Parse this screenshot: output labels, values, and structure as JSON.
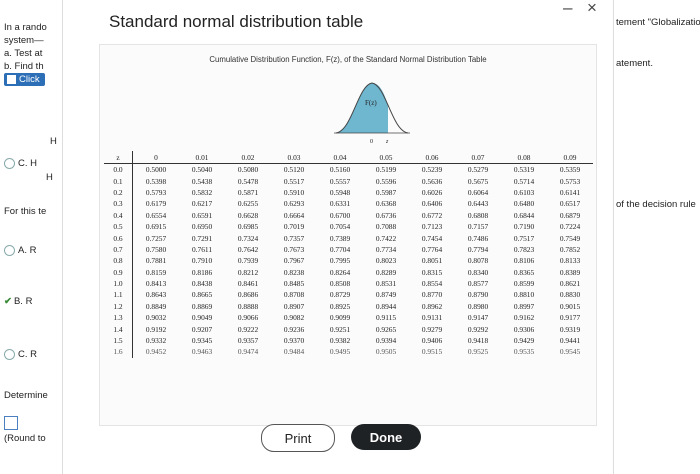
{
  "background": {
    "left": [
      "In a rando",
      "system—",
      "a. Test at",
      "b. Find th",
      "Click",
      "H",
      "H",
      "C. H",
      "H",
      "For this te",
      "A. R",
      "B. R",
      "C. R",
      "Determine",
      "(Round to"
    ],
    "right": [
      "tement \"Globalizatio",
      "atement.",
      "of the decision rule"
    ]
  },
  "dialog": {
    "title": "Standard normal distribution table",
    "minimize": "–",
    "close": "×",
    "caption": "Cumulative Distribution Function, F(z), of the Standard Normal Distribution Table",
    "curve": {
      "area_label": "F(z)",
      "zero_label": "0",
      "z_label": "z"
    },
    "buttons": {
      "print": "Print",
      "done": "Done"
    }
  },
  "table": {
    "headers": [
      "z",
      "0",
      "0.01",
      "0.02",
      "0.03",
      "0.04",
      "0.05",
      "0.06",
      "0.07",
      "0.08",
      "0.09"
    ],
    "rows": [
      [
        "0.0",
        "0.5000",
        "0.5040",
        "0.5080",
        "0.5120",
        "0.5160",
        "0.5199",
        "0.5239",
        "0.5279",
        "0.5319",
        "0.5359"
      ],
      [
        "0.1",
        "0.5398",
        "0.5438",
        "0.5478",
        "0.5517",
        "0.5557",
        "0.5596",
        "0.5636",
        "0.5675",
        "0.5714",
        "0.5753"
      ],
      [
        "0.2",
        "0.5793",
        "0.5832",
        "0.5871",
        "0.5910",
        "0.5948",
        "0.5987",
        "0.6026",
        "0.6064",
        "0.6103",
        "0.6141"
      ],
      [
        "0.3",
        "0.6179",
        "0.6217",
        "0.6255",
        "0.6293",
        "0.6331",
        "0.6368",
        "0.6406",
        "0.6443",
        "0.6480",
        "0.6517"
      ],
      [
        "0.4",
        "0.6554",
        "0.6591",
        "0.6628",
        "0.6664",
        "0.6700",
        "0.6736",
        "0.6772",
        "0.6808",
        "0.6844",
        "0.6879"
      ],
      [
        "0.5",
        "0.6915",
        "0.6950",
        "0.6985",
        "0.7019",
        "0.7054",
        "0.7088",
        "0.7123",
        "0.7157",
        "0.7190",
        "0.7224"
      ],
      [
        "0.6",
        "0.7257",
        "0.7291",
        "0.7324",
        "0.7357",
        "0.7389",
        "0.7422",
        "0.7454",
        "0.7486",
        "0.7517",
        "0.7549"
      ],
      [
        "0.7",
        "0.7580",
        "0.7611",
        "0.7642",
        "0.7673",
        "0.7704",
        "0.7734",
        "0.7764",
        "0.7794",
        "0.7823",
        "0.7852"
      ],
      [
        "0.8",
        "0.7881",
        "0.7910",
        "0.7939",
        "0.7967",
        "0.7995",
        "0.8023",
        "0.8051",
        "0.8078",
        "0.8106",
        "0.8133"
      ],
      [
        "0.9",
        "0.8159",
        "0.8186",
        "0.8212",
        "0.8238",
        "0.8264",
        "0.8289",
        "0.8315",
        "0.8340",
        "0.8365",
        "0.8389"
      ],
      [
        "1.0",
        "0.8413",
        "0.8438",
        "0.8461",
        "0.8485",
        "0.8508",
        "0.8531",
        "0.8554",
        "0.8577",
        "0.8599",
        "0.8621"
      ],
      [
        "1.1",
        "0.8643",
        "0.8665",
        "0.8686",
        "0.8708",
        "0.8729",
        "0.8749",
        "0.8770",
        "0.8790",
        "0.8810",
        "0.8830"
      ],
      [
        "1.2",
        "0.8849",
        "0.8869",
        "0.8888",
        "0.8907",
        "0.8925",
        "0.8944",
        "0.8962",
        "0.8980",
        "0.8997",
        "0.9015"
      ],
      [
        "1.3",
        "0.9032",
        "0.9049",
        "0.9066",
        "0.9082",
        "0.9099",
        "0.9115",
        "0.9131",
        "0.9147",
        "0.9162",
        "0.9177"
      ],
      [
        "1.4",
        "0.9192",
        "0.9207",
        "0.9222",
        "0.9236",
        "0.9251",
        "0.9265",
        "0.9279",
        "0.9292",
        "0.9306",
        "0.9319"
      ],
      [
        "1.5",
        "0.9332",
        "0.9345",
        "0.9357",
        "0.9370",
        "0.9382",
        "0.9394",
        "0.9406",
        "0.9418",
        "0.9429",
        "0.9441"
      ],
      [
        "1.6",
        "0.9452",
        "0.9463",
        "0.9474",
        "0.9484",
        "0.9495",
        "0.9505",
        "0.9515",
        "0.9525",
        "0.9535",
        "0.9545"
      ]
    ]
  }
}
